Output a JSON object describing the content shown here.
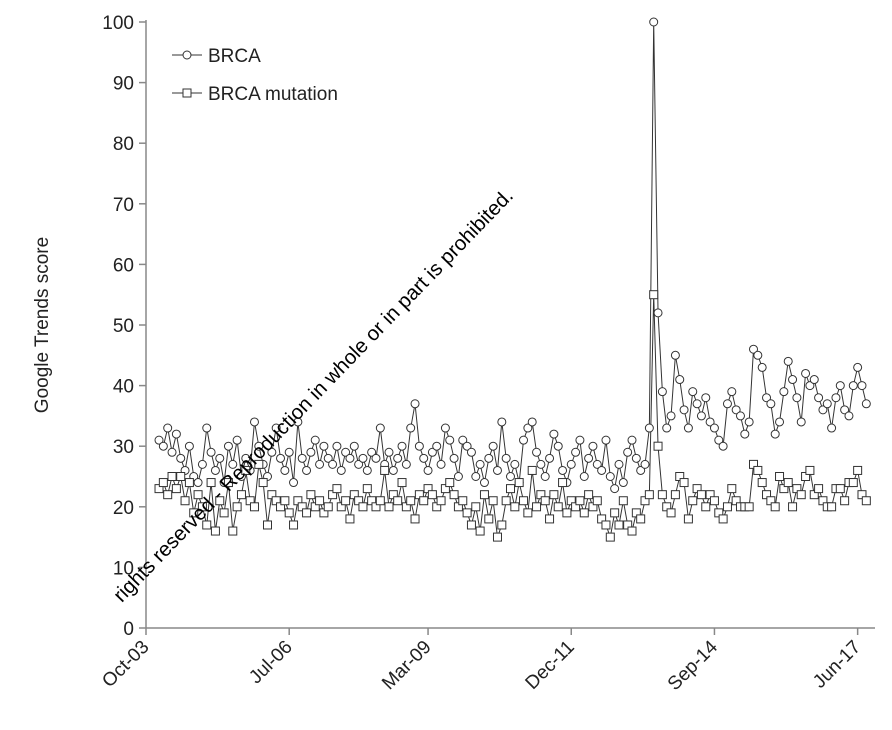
{
  "chart_data": {
    "type": "line",
    "ylabel": "Google Trends score",
    "watermark": "rights reserved - Reproduction in whole or in part is prohibited.",
    "xlim": [
      0,
      168
    ],
    "xticks": [
      {
        "value": 0,
        "label": "Oct-03"
      },
      {
        "value": 33,
        "label": "Jul-06"
      },
      {
        "value": 65,
        "label": "Mar-09"
      },
      {
        "value": 98,
        "label": "Dec-11"
      },
      {
        "value": 131,
        "label": "Sep-14"
      },
      {
        "value": 164,
        "label": "Jun-17"
      }
    ],
    "ylim": [
      0,
      100
    ],
    "yticks": [
      0,
      10,
      20,
      30,
      40,
      50,
      60,
      70,
      80,
      90,
      100
    ],
    "legend": "upper left",
    "x": [
      3,
      4,
      5,
      6,
      7,
      8,
      9,
      10,
      11,
      12,
      13,
      14,
      15,
      16,
      17,
      18,
      19,
      20,
      21,
      22,
      23,
      24,
      25,
      26,
      27,
      28,
      29,
      30,
      31,
      32,
      33,
      34,
      35,
      36,
      37,
      38,
      39,
      40,
      41,
      42,
      43,
      44,
      45,
      46,
      47,
      48,
      49,
      50,
      51,
      52,
      53,
      54,
      55,
      56,
      57,
      58,
      59,
      60,
      61,
      62,
      63,
      64,
      65,
      66,
      67,
      68,
      69,
      70,
      71,
      72,
      73,
      74,
      75,
      76,
      77,
      78,
      79,
      80,
      81,
      82,
      83,
      84,
      85,
      86,
      87,
      88,
      89,
      90,
      91,
      92,
      93,
      94,
      95,
      96,
      97,
      98,
      99,
      100,
      101,
      102,
      103,
      104,
      105,
      106,
      107,
      108,
      109,
      110,
      111,
      112,
      113,
      114,
      115,
      116,
      117,
      118,
      119,
      120,
      121,
      122,
      123,
      124,
      125,
      126,
      127,
      128,
      129,
      130,
      131,
      132,
      133,
      134,
      135,
      136,
      137,
      138,
      139,
      140,
      141,
      142,
      143,
      144,
      145,
      146,
      147,
      148,
      149,
      150,
      151,
      152,
      153,
      154,
      155,
      156,
      157,
      158,
      159,
      160,
      161,
      162,
      163,
      164,
      165,
      166
    ],
    "series": [
      {
        "name": "BRCA",
        "marker": "circle",
        "color": "#333333",
        "values": [
          31,
          30,
          33,
          29,
          32,
          28,
          26,
          30,
          25,
          24,
          27,
          33,
          29,
          26,
          28,
          24,
          30,
          27,
          31,
          25,
          28,
          26,
          34,
          30,
          27,
          25,
          29,
          33,
          28,
          26,
          29,
          24,
          34,
          28,
          26,
          29,
          31,
          27,
          30,
          28,
          27,
          30,
          26,
          29,
          28,
          30,
          27,
          28,
          26,
          29,
          28,
          33,
          27,
          29,
          26,
          28,
          30,
          27,
          33,
          37,
          30,
          28,
          26,
          29,
          30,
          27,
          33,
          31,
          28,
          25,
          31,
          30,
          29,
          25,
          27,
          24,
          28,
          30,
          26,
          34,
          28,
          25,
          27,
          24,
          31,
          33,
          34,
          29,
          27,
          25,
          28,
          32,
          30,
          26,
          24,
          27,
          29,
          31,
          25,
          28,
          30,
          27,
          26,
          31,
          25,
          23,
          27,
          24,
          29,
          31,
          28,
          26,
          27,
          33,
          100,
          52,
          39,
          33,
          35,
          45,
          41,
          36,
          33,
          39,
          37,
          35,
          38,
          34,
          33,
          31,
          30,
          37,
          39,
          36,
          35,
          32,
          34,
          46,
          45,
          43,
          38,
          37,
          32,
          34,
          39,
          44,
          41,
          38,
          34,
          42,
          40,
          41,
          38,
          36,
          37,
          33,
          38,
          40,
          36,
          35,
          40,
          43,
          40,
          37
        ]
      },
      {
        "name": "BRCA mutation",
        "marker": "square",
        "color": "#333333",
        "values": [
          23,
          24,
          22,
          25,
          23,
          25,
          21,
          24,
          19,
          22,
          20,
          17,
          24,
          16,
          21,
          19,
          24,
          16,
          20,
          22,
          26,
          21,
          20,
          27,
          24,
          17,
          22,
          21,
          20,
          21,
          19,
          17,
          21,
          20,
          19,
          22,
          20,
          21,
          19,
          20,
          22,
          23,
          20,
          21,
          18,
          22,
          21,
          20,
          23,
          21,
          20,
          21,
          26,
          20,
          22,
          21,
          24,
          20,
          21,
          18,
          22,
          21,
          23,
          22,
          20,
          21,
          23,
          24,
          22,
          20,
          21,
          19,
          17,
          20,
          16,
          22,
          18,
          21,
          15,
          17,
          21,
          23,
          20,
          24,
          21,
          19,
          26,
          20,
          22,
          21,
          18,
          22,
          20,
          24,
          19,
          21,
          20,
          21,
          19,
          22,
          20,
          21,
          18,
          17,
          15,
          19,
          17,
          21,
          17,
          16,
          19,
          18,
          21,
          22,
          55,
          30,
          22,
          20,
          19,
          22,
          25,
          24,
          18,
          21,
          23,
          22,
          20,
          22,
          21,
          19,
          18,
          20,
          23,
          21,
          20,
          20,
          20,
          27,
          26,
          24,
          22,
          21,
          20,
          25,
          23,
          24,
          20,
          23,
          22,
          25,
          26,
          22,
          23,
          21,
          20,
          20,
          23,
          23,
          21,
          24,
          24,
          26,
          22,
          21
        ]
      }
    ]
  }
}
